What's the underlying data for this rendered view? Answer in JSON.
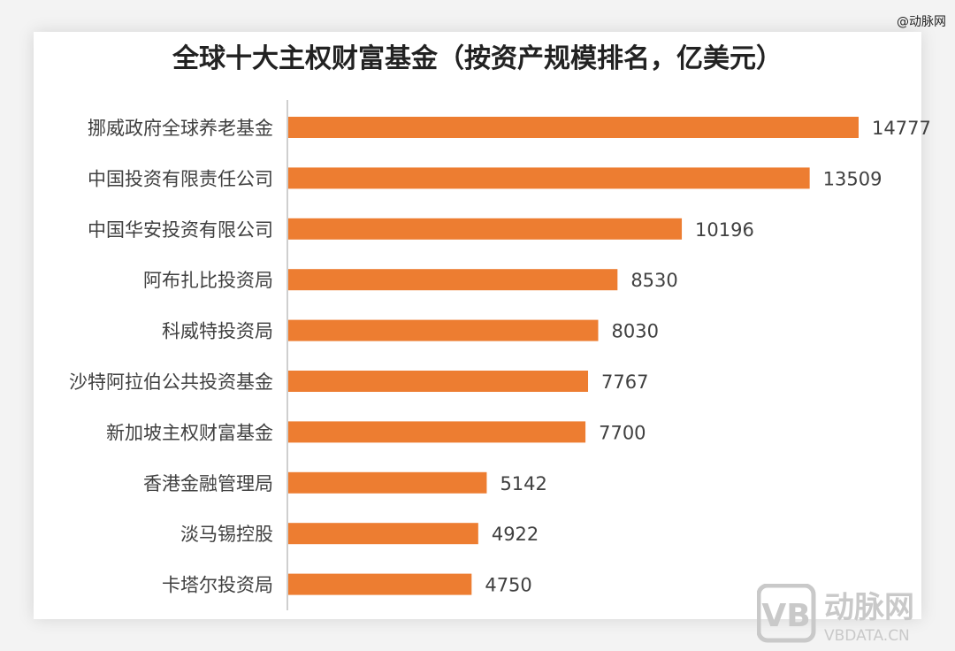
{
  "watermark": "@动脉网",
  "logo": {
    "name": "动脉网",
    "url_text": "VBDATA.CN",
    "mark": "VB"
  },
  "colors": {
    "bar": "#ed7d31",
    "label": "#404040",
    "axis": "#bfbfbf",
    "title": "#222222",
    "logo": "#c9c9c9"
  },
  "chart_data": {
    "type": "bar",
    "orientation": "horizontal",
    "title": "全球十大主权财富基金（按资产规模排名，亿美元）",
    "categories": [
      "挪威政府全球养老基金",
      "中国投资有限责任公司",
      "中国华安投资有限公司",
      "阿布扎比投资局",
      "科威特投资局",
      "沙特阿拉伯公共投资基金",
      "新加坡主权财富基金",
      "香港金融管理局",
      "淡马锡控股",
      "卡塔尔投资局"
    ],
    "values": [
      14777,
      13509,
      10196,
      8530,
      8030,
      7767,
      7700,
      5142,
      4922,
      4750
    ],
    "data_labels": [
      "14777",
      "13509",
      "10196",
      "8530",
      "8030",
      "7767",
      "7700",
      "5142",
      "4922",
      "4750"
    ],
    "xlim": [
      0,
      14777
    ],
    "grid": false,
    "legend": "none"
  }
}
